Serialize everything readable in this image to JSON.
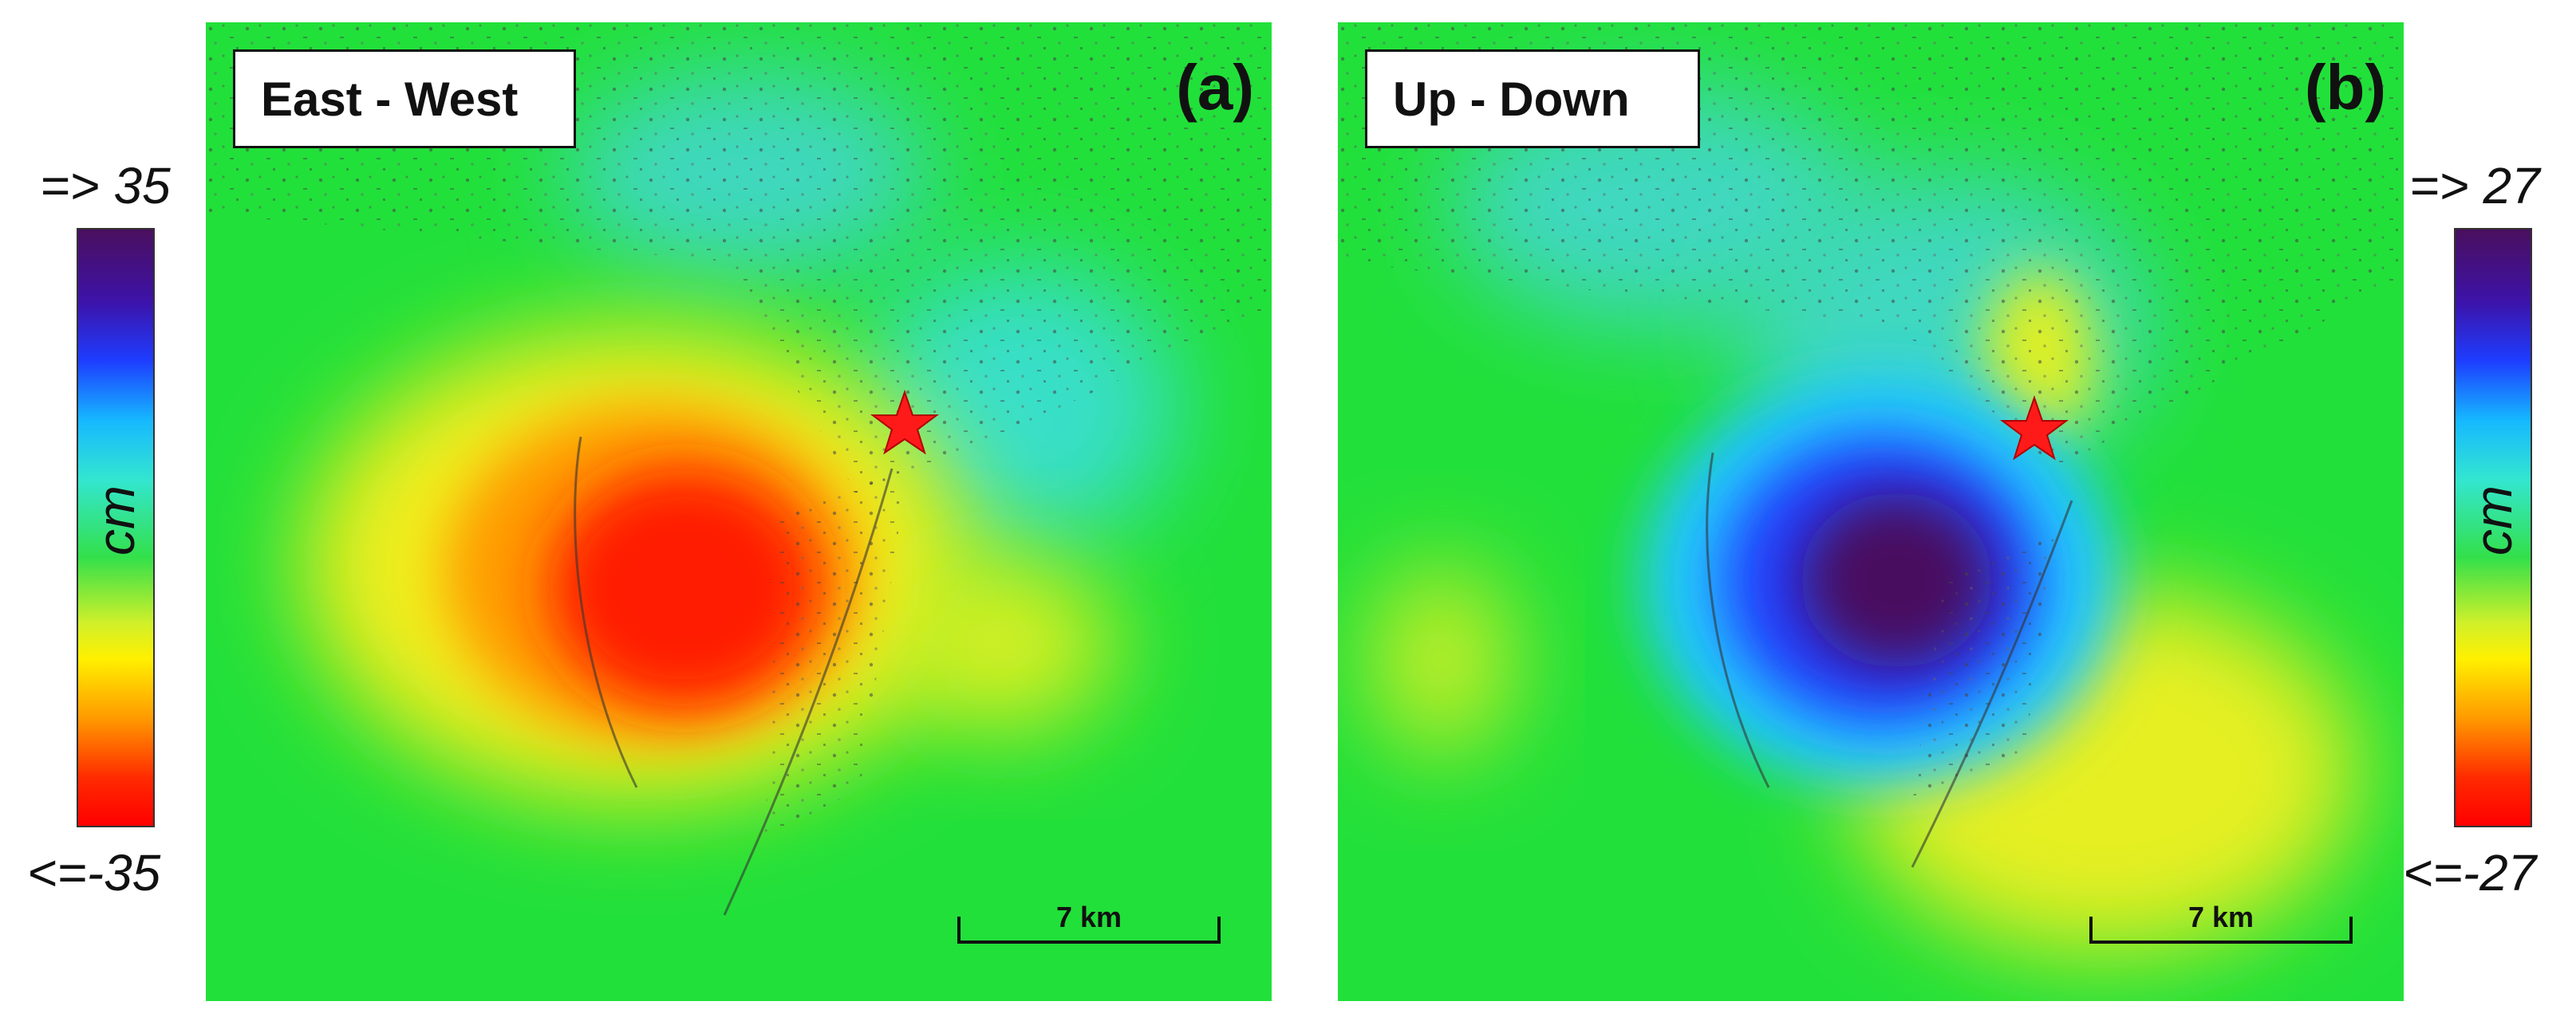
{
  "panels": {
    "a": {
      "title": "East - West",
      "letter": "(a)",
      "scale_label": "7 km",
      "colorbar": {
        "max_label": "=> 35",
        "min_label": "<=-35",
        "unit": "cm"
      }
    },
    "b": {
      "title": "Up - Down",
      "letter": "(b)",
      "scale_label": "7 km",
      "colorbar": {
        "max_label": "=> 27",
        "min_label": "<=-27",
        "unit": "cm"
      }
    }
  },
  "colors": {
    "epicenter_star": "#ff1a1a",
    "background_green": "#22e03a"
  },
  "icons": {
    "epicenter": "star-icon"
  }
}
